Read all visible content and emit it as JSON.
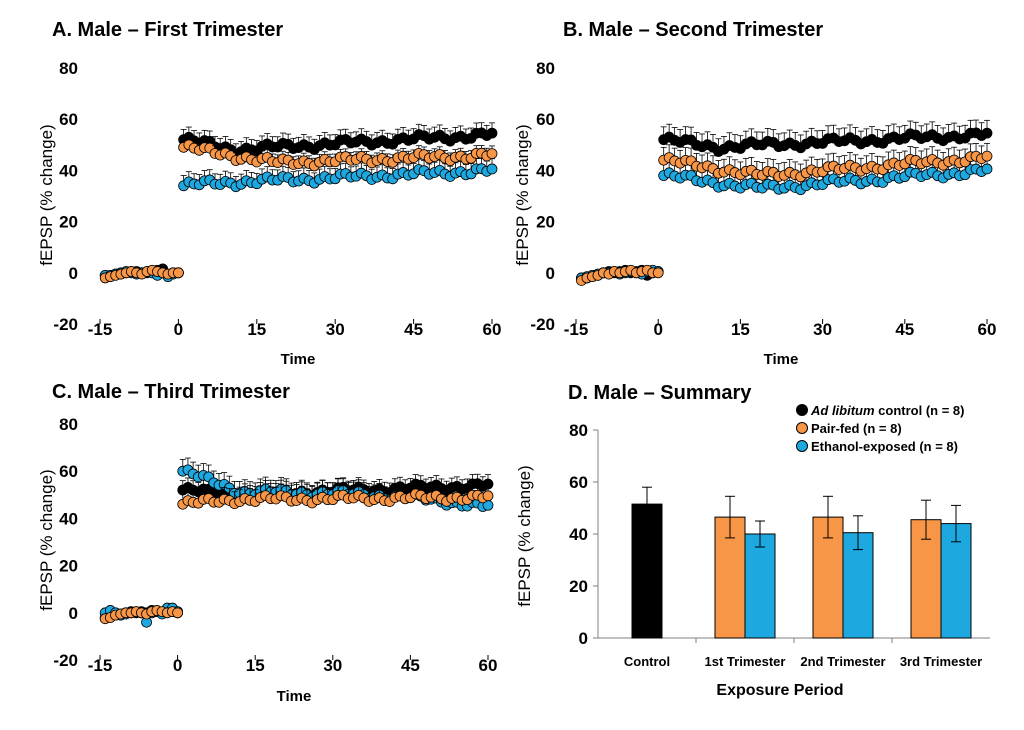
{
  "colors": {
    "control": "#000000",
    "pairfed": "#F79646",
    "ethanol": "#1EA8E0",
    "errorbar": "#000000"
  },
  "legend": {
    "entries": [
      {
        "key": "control",
        "italic": "Ad libitum",
        "text": " control (n = 8)"
      },
      {
        "key": "pairfed",
        "italic": "",
        "text": "Pair-fed (n = 8)"
      },
      {
        "key": "ethanol",
        "italic": "",
        "text": "Ethanol-exposed (n = 8)"
      }
    ]
  },
  "chart_data": [
    {
      "id": "A",
      "type": "scatter",
      "title": "A. Male – First Trimester",
      "xlabel": "Time",
      "ylabel": "fEPSP (% change)",
      "xlim": [
        -15,
        60
      ],
      "ylim": [
        -20,
        80
      ],
      "xticks": [
        "-15",
        "0",
        "15",
        "30",
        "45",
        "60"
      ],
      "xtick_values": [
        -15,
        0,
        15,
        30,
        45,
        60
      ],
      "yticks": [
        "-20",
        "0",
        "20",
        "40",
        "60",
        "80"
      ],
      "ytick_values": [
        -20,
        0,
        20,
        40,
        60,
        80
      ],
      "series": [
        {
          "name": "Ad libitum control",
          "key": "control",
          "baseline": [
            [
              -14,
              -1
            ],
            [
              -13,
              -1
            ],
            [
              -12,
              -0.5
            ],
            [
              -11,
              -0.5
            ],
            [
              -10,
              0
            ],
            [
              -9,
              0.5
            ],
            [
              -8,
              0.5
            ],
            [
              -7,
              0
            ],
            [
              -6,
              0
            ],
            [
              -5,
              0.5
            ],
            [
              -4,
              1
            ],
            [
              -3,
              1.5
            ],
            [
              -2,
              -1
            ],
            [
              -1,
              0
            ],
            [
              0,
              0
            ]
          ],
          "post": {
            "start": 52,
            "mid": 48,
            "end": 54,
            "shape": "flat",
            "err": 4
          }
        },
        {
          "name": "Pair-fed",
          "key": "pairfed",
          "baseline": [
            [
              -14,
              -2
            ],
            [
              -13,
              -1.5
            ],
            [
              -12,
              -1
            ],
            [
              -11,
              -0.5
            ],
            [
              -10,
              0
            ],
            [
              -9,
              0.5
            ],
            [
              -8,
              0
            ],
            [
              -7,
              -0.5
            ],
            [
              -6,
              0.5
            ],
            [
              -5,
              1
            ],
            [
              -4,
              0.5
            ],
            [
              -3,
              0
            ],
            [
              -2,
              -0.5
            ],
            [
              -1,
              0
            ],
            [
              0,
              0
            ]
          ],
          "post": {
            "start": 49,
            "mid": 43,
            "end": 46,
            "shape": "dip",
            "err": 3
          }
        },
        {
          "name": "Ethanol-exposed",
          "key": "ethanol",
          "baseline": [
            [
              -14,
              -1
            ],
            [
              -13,
              -1
            ],
            [
              -12,
              -0.5
            ],
            [
              -11,
              0
            ],
            [
              -10,
              0.5
            ],
            [
              -9,
              0
            ],
            [
              -8,
              -0.5
            ],
            [
              -7,
              0
            ],
            [
              -6,
              0.5
            ],
            [
              -5,
              0
            ],
            [
              -4,
              -1
            ],
            [
              -3,
              0
            ],
            [
              -2,
              -1.5
            ],
            [
              -1,
              -0.5
            ],
            [
              0,
              0
            ]
          ],
          "post": {
            "start": 34,
            "mid": 35,
            "end": 40,
            "shape": "rise",
            "err": 4
          }
        }
      ]
    },
    {
      "id": "B",
      "type": "scatter",
      "title": "B. Male – Second Trimester",
      "xlabel": "Time",
      "ylabel": "fEPSP (% change)",
      "xlim": [
        -15,
        60
      ],
      "ylim": [
        -20,
        80
      ],
      "xticks": [
        "-15",
        "0",
        "15",
        "30",
        "45",
        "60"
      ],
      "xtick_values": [
        -15,
        0,
        15,
        30,
        45,
        60
      ],
      "yticks": [
        "-20",
        "0",
        "20",
        "40",
        "60",
        "80"
      ],
      "ytick_values": [
        -20,
        0,
        20,
        40,
        60,
        80
      ],
      "series": [
        {
          "name": "Ad libitum control",
          "key": "control",
          "baseline": [
            [
              -14,
              -2
            ],
            [
              -13,
              -2
            ],
            [
              -12,
              -1
            ],
            [
              -11,
              -1
            ],
            [
              -10,
              0
            ],
            [
              -9,
              0.5
            ],
            [
              -8,
              0
            ],
            [
              -7,
              0.5
            ],
            [
              -6,
              1
            ],
            [
              -5,
              0
            ],
            [
              -4,
              0.5
            ],
            [
              -3,
              1
            ],
            [
              -2,
              -1
            ],
            [
              -1,
              0
            ],
            [
              0,
              0.5
            ]
          ],
          "post": {
            "start": 52,
            "mid": 49,
            "end": 54,
            "shape": "flat",
            "err": 5
          }
        },
        {
          "name": "Pair-fed",
          "key": "pairfed",
          "baseline": [
            [
              -14,
              -3
            ],
            [
              -13,
              -2
            ],
            [
              -12,
              -1.5
            ],
            [
              -11,
              -1
            ],
            [
              -10,
              0
            ],
            [
              -9,
              -0.5
            ],
            [
              -8,
              0.5
            ],
            [
              -7,
              0
            ],
            [
              -6,
              0.5
            ],
            [
              -5,
              1
            ],
            [
              -4,
              0
            ],
            [
              -3,
              0.5
            ],
            [
              -2,
              1
            ],
            [
              -1,
              0
            ],
            [
              0,
              0
            ]
          ],
          "post": {
            "start": 44,
            "mid": 38,
            "end": 45,
            "shape": "dip",
            "err": 5
          }
        },
        {
          "name": "Ethanol-exposed",
          "key": "ethanol",
          "baseline": [
            [
              -14,
              -2
            ],
            [
              -13,
              -1.5
            ],
            [
              -12,
              -1
            ],
            [
              -11,
              -0.5
            ],
            [
              -10,
              0
            ],
            [
              -9,
              0
            ],
            [
              -8,
              0.5
            ],
            [
              -7,
              -0.5
            ],
            [
              -6,
              0
            ],
            [
              -5,
              0.5
            ],
            [
              -4,
              0
            ],
            [
              -3,
              -0.5
            ],
            [
              -2,
              0.5
            ],
            [
              -1,
              1
            ],
            [
              0,
              0.5
            ]
          ],
          "post": {
            "start": 38,
            "mid": 33,
            "end": 40,
            "shape": "dip",
            "err": 6
          }
        }
      ]
    },
    {
      "id": "C",
      "type": "scatter",
      "title": "C. Male – Third Trimester",
      "xlabel": "Time",
      "ylabel": "fEPSP (% change)",
      "xlim": [
        -15,
        60
      ],
      "ylim": [
        -20,
        80
      ],
      "xticks": [
        "-15",
        "0",
        "15",
        "30",
        "45",
        "60"
      ],
      "xtick_values": [
        -15,
        0,
        15,
        30,
        45,
        60
      ],
      "yticks": [
        "-20",
        "0",
        "20",
        "40",
        "60",
        "80"
      ],
      "ytick_values": [
        -20,
        0,
        20,
        40,
        60,
        80
      ],
      "series": [
        {
          "name": "Ad libitum control",
          "key": "control",
          "baseline": [
            [
              -14,
              -2
            ],
            [
              -13,
              -1.5
            ],
            [
              -12,
              -1
            ],
            [
              -11,
              -0.5
            ],
            [
              -10,
              0
            ],
            [
              -9,
              0.5
            ],
            [
              -8,
              0
            ],
            [
              -7,
              0.5
            ],
            [
              -6,
              0
            ],
            [
              -5,
              1
            ],
            [
              -4,
              0.5
            ],
            [
              -3,
              0
            ],
            [
              -2,
              1
            ],
            [
              -1,
              0.5
            ],
            [
              0,
              0
            ]
          ],
          "post": {
            "start": 52,
            "mid": 50,
            "end": 54,
            "shape": "flat",
            "err": 4
          }
        },
        {
          "name": "Pair-fed",
          "key": "pairfed",
          "baseline": [
            [
              -14,
              -2.5
            ],
            [
              -13,
              -2
            ],
            [
              -12,
              -1
            ],
            [
              -11,
              -0.5
            ],
            [
              -10,
              0
            ],
            [
              -9,
              0
            ],
            [
              -8,
              0.5
            ],
            [
              -7,
              0
            ],
            [
              -6,
              -0.5
            ],
            [
              -5,
              0.5
            ],
            [
              -4,
              1
            ],
            [
              -3,
              0.5
            ],
            [
              -2,
              0
            ],
            [
              -1,
              0.5
            ],
            [
              0,
              0
            ]
          ],
          "post": {
            "start": 46,
            "mid": 48,
            "end": 49,
            "shape": "flat",
            "err": 5
          }
        },
        {
          "name": "Ethanol-exposed",
          "key": "ethanol",
          "baseline": [
            [
              -14,
              0
            ],
            [
              -13,
              1
            ],
            [
              -12,
              0
            ],
            [
              -11,
              -1
            ],
            [
              -10,
              -0.5
            ],
            [
              -9,
              0
            ],
            [
              -8,
              0.5
            ],
            [
              -7,
              0
            ],
            [
              -6,
              -4
            ],
            [
              -5,
              0
            ],
            [
              -4,
              0.5
            ],
            [
              -3,
              -0.5
            ],
            [
              -2,
              2
            ],
            [
              -1,
              2
            ],
            [
              0,
              0.5
            ]
          ],
          "post": {
            "start": 60,
            "mid": 51,
            "end": 45,
            "shape": "decay",
            "err": 5
          }
        }
      ]
    },
    {
      "id": "D",
      "type": "bar",
      "title": "D. Male – Summary",
      "xlabel": "Exposure Period",
      "ylabel": "fEPSP (% change)",
      "ylim": [
        0,
        80
      ],
      "yticks": [
        "0",
        "20",
        "40",
        "60",
        "80"
      ],
      "ytick_values": [
        0,
        20,
        40,
        60,
        80
      ],
      "categories": [
        "Control",
        "1st Trimester",
        "2nd Trimester",
        "3rd Trimester"
      ],
      "bars": [
        {
          "category": "Control",
          "key": "control",
          "value": 51.5,
          "err": 6.5
        },
        {
          "category": "1st Trimester",
          "key": "pairfed",
          "value": 46.5,
          "err": 8
        },
        {
          "category": "1st Trimester",
          "key": "ethanol",
          "value": 40,
          "err": 5
        },
        {
          "category": "2nd Trimester",
          "key": "pairfed",
          "value": 46.5,
          "err": 8
        },
        {
          "category": "2nd Trimester",
          "key": "ethanol",
          "value": 40.5,
          "err": 6.5
        },
        {
          "category": "3rd Trimester",
          "key": "pairfed",
          "value": 45.5,
          "err": 7.5
        },
        {
          "category": "3rd Trimester",
          "key": "ethanol",
          "value": 44,
          "err": 7
        }
      ]
    }
  ]
}
